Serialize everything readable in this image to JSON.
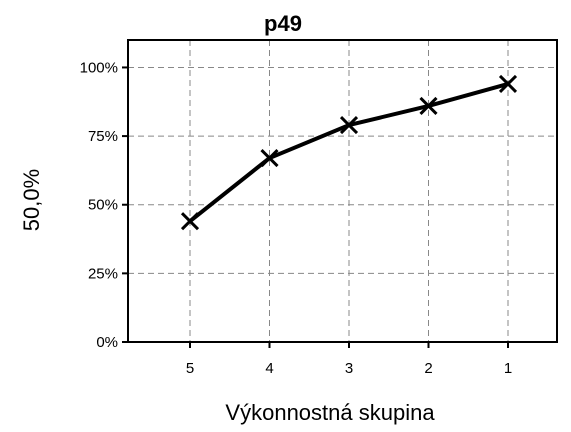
{
  "chart_data": {
    "type": "line",
    "title": "p49",
    "xlabel": "Výkonnostná skupina",
    "ylabel": "50,0%",
    "categories": [
      "5",
      "4",
      "3",
      "2",
      "1"
    ],
    "series": [
      {
        "values": [
          44,
          67,
          79,
          86,
          94
        ]
      }
    ],
    "ylim": [
      0,
      110
    ],
    "yticks": [
      {
        "value": 0,
        "label": "0%"
      },
      {
        "value": 25,
        "label": "25%"
      },
      {
        "value": 50,
        "label": "50%"
      },
      {
        "value": 75,
        "label": "75%"
      },
      {
        "value": 100,
        "label": "100%"
      }
    ],
    "grid": true,
    "marker": "x",
    "line_color": "#000000"
  }
}
